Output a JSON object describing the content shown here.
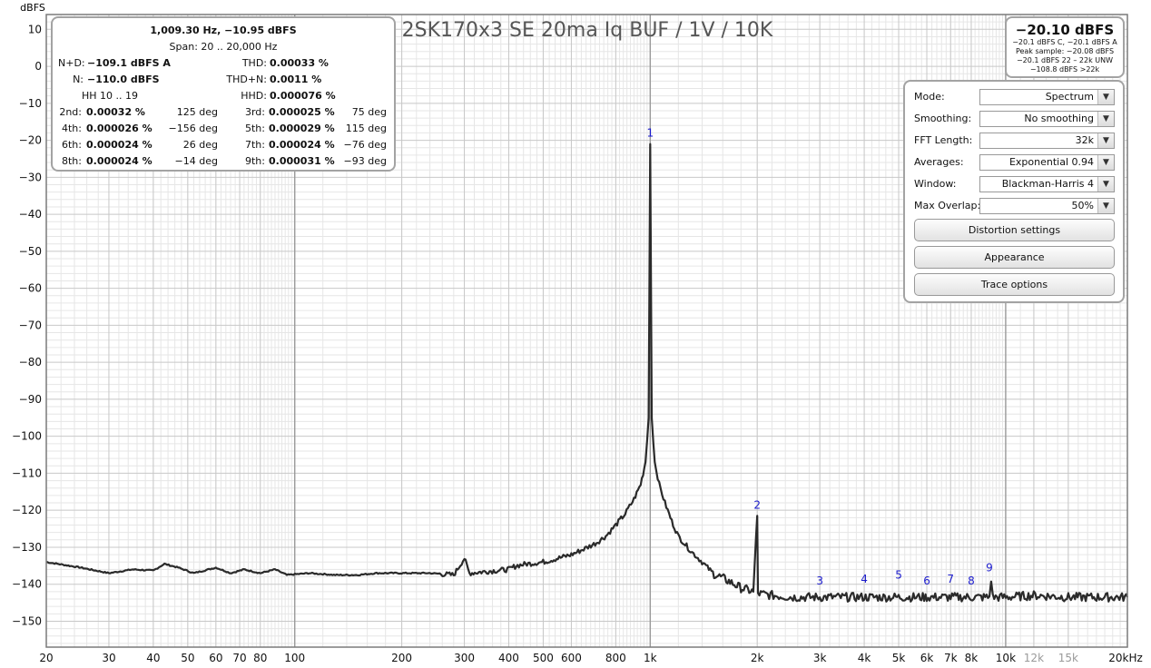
{
  "chart_data": {
    "type": "line",
    "title": "2SK170x3 SE 20ma Iq BUF / 1V / 10K",
    "ylabel": "dBFS",
    "xlabel": "",
    "x_unit_label": "20kHz",
    "xscale": "log",
    "xlim": [
      20,
      22000
    ],
    "ylim": [
      -157,
      14
    ],
    "y_ticks": [
      10,
      0,
      -10,
      -20,
      -30,
      -40,
      -50,
      -60,
      -70,
      -80,
      -90,
      -100,
      -110,
      -120,
      -130,
      -140,
      -150
    ],
    "x_ticks": [
      {
        "v": 20,
        "label": "20",
        "major": true
      },
      {
        "v": 30,
        "label": "30",
        "major": true
      },
      {
        "v": 40,
        "label": "40",
        "major": true
      },
      {
        "v": 50,
        "label": "50",
        "major": true
      },
      {
        "v": 60,
        "label": "60",
        "major": true
      },
      {
        "v": 70,
        "label": "70",
        "major": true
      },
      {
        "v": 80,
        "label": "80",
        "major": true
      },
      {
        "v": 100,
        "label": "100",
        "major": true
      },
      {
        "v": 200,
        "label": "200",
        "major": true
      },
      {
        "v": 300,
        "label": "300",
        "major": true
      },
      {
        "v": 400,
        "label": "400",
        "major": true
      },
      {
        "v": 500,
        "label": "500",
        "major": true
      },
      {
        "v": 600,
        "label": "600",
        "major": true
      },
      {
        "v": 800,
        "label": "800",
        "major": true
      },
      {
        "v": 1000,
        "label": "1k",
        "major": true
      },
      {
        "v": 2000,
        "label": "2k",
        "major": true
      },
      {
        "v": 3000,
        "label": "3k",
        "major": true
      },
      {
        "v": 4000,
        "label": "4k",
        "major": true
      },
      {
        "v": 5000,
        "label": "5k",
        "major": true
      },
      {
        "v": 6000,
        "label": "6k",
        "major": true
      },
      {
        "v": 7000,
        "label": "7k",
        "major": true
      },
      {
        "v": 8000,
        "label": "8k",
        "major": true
      },
      {
        "v": 10000,
        "label": "10k",
        "major": true
      },
      {
        "v": 12000,
        "label": "12k",
        "major": false
      },
      {
        "v": 15000,
        "label": "15k",
        "major": false
      }
    ],
    "grid": true,
    "series": [
      {
        "color": "#2a2a2a",
        "points": [
          [
            20,
            -134
          ],
          [
            25,
            -135.5
          ],
          [
            30,
            -137
          ],
          [
            35,
            -136
          ],
          [
            40,
            -136.3
          ],
          [
            43,
            -134.5
          ],
          [
            47,
            -135.5
          ],
          [
            52,
            -137
          ],
          [
            60,
            -135.5
          ],
          [
            66,
            -137
          ],
          [
            72,
            -136
          ],
          [
            80,
            -137
          ],
          [
            88,
            -136
          ],
          [
            95,
            -137.5
          ],
          [
            110,
            -137
          ],
          [
            130,
            -137.5
          ],
          [
            150,
            -137.5
          ],
          [
            170,
            -137
          ],
          [
            200,
            -137
          ],
          [
            240,
            -137
          ],
          [
            280,
            -137.5
          ],
          [
            300,
            -133
          ],
          [
            310,
            -137
          ],
          [
            350,
            -136.5
          ],
          [
            400,
            -136
          ],
          [
            420,
            -135
          ],
          [
            450,
            -134.5
          ],
          [
            500,
            -134
          ],
          [
            550,
            -133
          ],
          [
            600,
            -132
          ],
          [
            650,
            -130.5
          ],
          [
            700,
            -129
          ],
          [
            750,
            -127
          ],
          [
            800,
            -124
          ],
          [
            850,
            -121
          ],
          [
            900,
            -117
          ],
          [
            940,
            -113
          ],
          [
            970,
            -107
          ],
          [
            990,
            -95
          ],
          [
            1000,
            -21
          ],
          [
            1010,
            -95
          ],
          [
            1030,
            -107
          ],
          [
            1060,
            -113
          ],
          [
            1100,
            -118
          ],
          [
            1150,
            -123
          ],
          [
            1200,
            -127
          ],
          [
            1300,
            -131
          ],
          [
            1400,
            -134
          ],
          [
            1500,
            -137
          ],
          [
            1650,
            -139
          ],
          [
            1800,
            -141
          ],
          [
            1950,
            -142
          ],
          [
            2000,
            -121.5
          ],
          [
            2010,
            -142.5
          ],
          [
            2200,
            -143
          ],
          [
            2500,
            -143.5
          ],
          [
            3000,
            -143.5
          ],
          [
            3500,
            -143.5
          ],
          [
            4000,
            -143.5
          ],
          [
            5000,
            -143.5
          ],
          [
            6000,
            -143.5
          ],
          [
            7000,
            -143.5
          ],
          [
            8000,
            -143.5
          ],
          [
            9000,
            -143.5
          ],
          [
            9100,
            -138.5
          ],
          [
            9200,
            -143.5
          ],
          [
            10000,
            -143.5
          ],
          [
            12000,
            -143
          ],
          [
            15000,
            -143.5
          ],
          [
            20000,
            -143.5
          ],
          [
            22000,
            -143.5
          ]
        ]
      }
    ],
    "harmonic_markers": [
      {
        "label": "1",
        "f": 1000,
        "db": -21
      },
      {
        "label": "2",
        "f": 2000,
        "db": -121.5
      },
      {
        "label": "3",
        "f": 3000,
        "db": -142
      },
      {
        "label": "4",
        "f": 4000,
        "db": -141.5
      },
      {
        "label": "5",
        "f": 5000,
        "db": -140.5
      },
      {
        "label": "6",
        "f": 6000,
        "db": -142
      },
      {
        "label": "7",
        "f": 7000,
        "db": -141.5
      },
      {
        "label": "8",
        "f": 8000,
        "db": -142
      },
      {
        "label": "9",
        "f": 9000,
        "db": -138.5
      }
    ],
    "marker_color": "#1a1acc",
    "grid_minor_color": "#e6e6e6",
    "grid_major_color": "#b8b8b8"
  },
  "stats": {
    "header": "1,009.30 Hz, −10.95 dBFS",
    "span": "Span: 20 .. 20,000 Hz",
    "nd_label": "N+D:",
    "nd_value": "−109.1 dBFS A",
    "thd_label": "THD:",
    "thd_value": "0.00033 %",
    "n_label": "N:",
    "n_value": "−110.0 dBFS",
    "thdn_label": "THD+N:",
    "thdn_value": "0.0011 %",
    "hh_label": "HH 10 .. 19",
    "hhd_label": "HHD:",
    "hhd_value": "0.000076 %",
    "harmonics": [
      {
        "label": "2nd:",
        "value": "0.00032 %",
        "phase": "125 deg"
      },
      {
        "label": "3rd:",
        "value": "0.000025 %",
        "phase": "75 deg"
      },
      {
        "label": "4th:",
        "value": "0.000026 %",
        "phase": "−156 deg"
      },
      {
        "label": "5th:",
        "value": "0.000029 %",
        "phase": "115 deg"
      },
      {
        "label": "6th:",
        "value": "0.000024 %",
        "phase": "26 deg"
      },
      {
        "label": "7th:",
        "value": "0.000024 %",
        "phase": "−76 deg"
      },
      {
        "label": "8th:",
        "value": "0.000024 %",
        "phase": "−14 deg"
      },
      {
        "label": "9th:",
        "value": "0.000031 %",
        "phase": "−93 deg"
      }
    ]
  },
  "level": {
    "main": "−20.10 dBFS",
    "line1": "−20.1 dBFS C, −20.1 dBFS A",
    "line2": "Peak sample: −20.08 dBFS",
    "line3": "−20.1 dBFS 22 – 22k UNW",
    "line4": "−108.8 dBFS >22k"
  },
  "controls": {
    "mode_label": "Mode:",
    "mode_value": "Spectrum",
    "smoothing_label": "Smoothing:",
    "smoothing_value": "No  smoothing",
    "fft_label": "FFT Length:",
    "fft_value": "32k",
    "averages_label": "Averages:",
    "averages_value": "Exponential 0.94",
    "window_label": "Window:",
    "window_value": "Blackman-Harris 4",
    "overlap_label": "Max Overlap:",
    "overlap_value": "50%",
    "distortion_button": "Distortion settings",
    "appearance_button": "Appearance",
    "trace_button": "Trace options"
  }
}
